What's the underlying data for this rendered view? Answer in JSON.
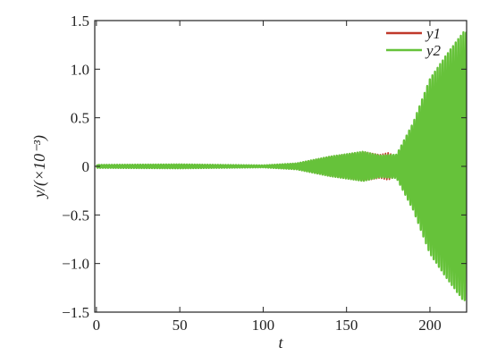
{
  "chart_data": {
    "type": "line",
    "xlabel": "t",
    "ylabel": "y/(×10⁻³)",
    "xlim": [
      -1,
      222
    ],
    "ylim": [
      -1.5,
      1.5
    ],
    "xticks": [
      0,
      50,
      100,
      150,
      200
    ],
    "xtick_labels": [
      "0",
      "50",
      "100",
      "150",
      "200"
    ],
    "yticks": [
      -1.5,
      -1.0,
      -0.5,
      0,
      0.5,
      1.0,
      1.5
    ],
    "ytick_labels": [
      "−1.5",
      "−1.0",
      "−0.5",
      "0",
      "0.5",
      "1.0",
      "1.5"
    ],
    "grid": false,
    "legend_position": "top-right",
    "series": [
      {
        "name": "y1",
        "color": "#c0392b",
        "envelope": {
          "t": [
            0,
            50,
            100,
            120,
            140,
            160,
            170,
            175,
            180,
            190,
            200,
            210,
            220
          ],
          "amplitude": [
            0.015,
            0.02,
            0.01,
            0.03,
            0.1,
            0.15,
            0.12,
            0.14,
            0.1,
            0.35,
            0.6,
            0.85,
            1.15
          ]
        }
      },
      {
        "name": "y2",
        "color": "#66c23a",
        "envelope": {
          "t": [
            0,
            50,
            100,
            120,
            140,
            160,
            170,
            180,
            190,
            200,
            210,
            220
          ],
          "amplitude": [
            0.015,
            0.02,
            0.01,
            0.03,
            0.1,
            0.15,
            0.11,
            0.12,
            0.45,
            0.9,
            1.15,
            1.38
          ]
        }
      }
    ]
  }
}
